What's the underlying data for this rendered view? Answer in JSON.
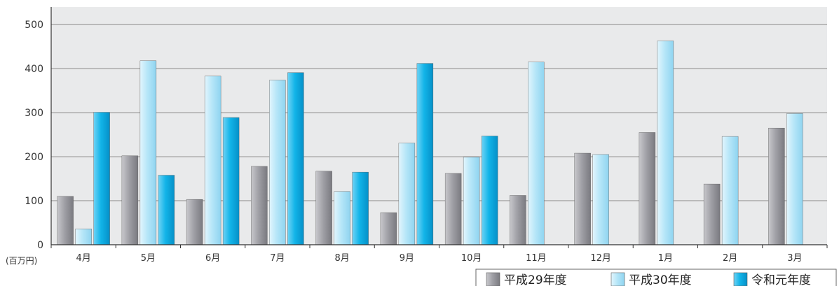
{
  "chart_data": {
    "type": "bar",
    "unit_label": "(百万円)",
    "ylim": [
      0,
      540
    ],
    "yticks": [
      "0",
      "100",
      "200",
      "300",
      "400",
      "500"
    ],
    "grid": true,
    "legend_position": "bottom-right",
    "categories": [
      "4月",
      "5月",
      "6月",
      "7月",
      "8月",
      "9月",
      "10月",
      "11月",
      "12月",
      "1月",
      "2月",
      "3月"
    ],
    "series": [
      {
        "name": "平成29年度",
        "color": "#9a9aa0",
        "values": [
          110,
          202,
          103,
          178,
          167,
          73,
          162,
          112,
          208,
          255,
          138,
          265
        ]
      },
      {
        "name": "平成30年度",
        "color": "#a8e0f6",
        "values": [
          36,
          418,
          383,
          374,
          121,
          231,
          199,
          415,
          205,
          463,
          246,
          298
        ]
      },
      {
        "name": "令和元年度",
        "color": "#0fb4e8",
        "values": [
          301,
          158,
          289,
          391,
          165,
          412,
          247,
          null,
          null,
          null,
          null,
          null
        ]
      }
    ]
  }
}
